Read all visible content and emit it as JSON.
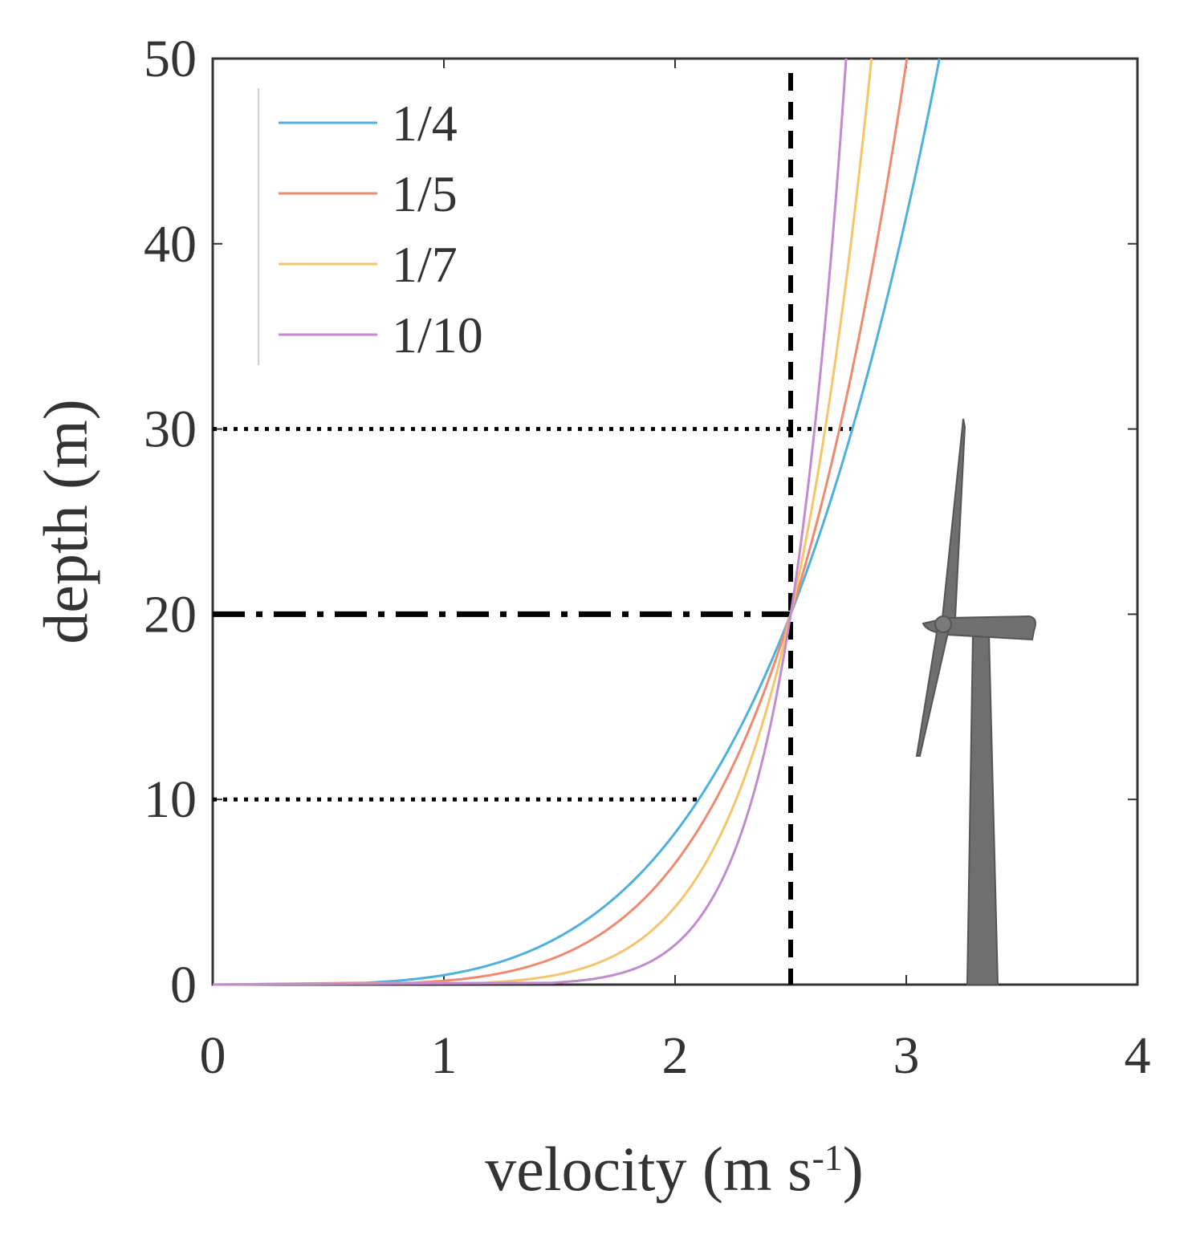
{
  "chart_data": {
    "type": "line",
    "title": "",
    "xlabel": "velocity (m s",
    "xlabel_superscript": "-1",
    "xlabel_close": ")",
    "ylabel": "depth (m)",
    "xlim": [
      0,
      4
    ],
    "ylim": [
      0,
      50
    ],
    "xticks": [
      0,
      1,
      2,
      3,
      4
    ],
    "yticks": [
      0,
      10,
      20,
      30,
      40,
      50
    ],
    "grid": false,
    "legend_position": "top-left",
    "reference_velocity": 2.5,
    "reference_depth": 20,
    "series": [
      {
        "name": "1/4",
        "exponent": 4,
        "color": "#4db1e0"
      },
      {
        "name": "1/5",
        "exponent": 5,
        "color": "#f08a6e"
      },
      {
        "name": "1/7",
        "exponent": 7,
        "color": "#f7c46a"
      },
      {
        "name": "1/10",
        "exponent": 10,
        "color": "#c38ad0"
      }
    ],
    "annotations": [
      {
        "type": "vline",
        "x": 2.5,
        "style": "dashed",
        "color": "#000000"
      },
      {
        "type": "hline",
        "y": 20,
        "x_from": 0,
        "x_to": 2.5,
        "style": "dash-dot",
        "color": "#000000"
      },
      {
        "type": "hline",
        "y": 30,
        "x_from": 0,
        "x_to": 2.78,
        "style": "dotted",
        "color": "#000000"
      },
      {
        "type": "hline",
        "y": 10,
        "x_from": 0,
        "x_to": 2.1,
        "style": "dotted",
        "color": "#000000"
      }
    ],
    "illustration": "wind-turbine"
  }
}
